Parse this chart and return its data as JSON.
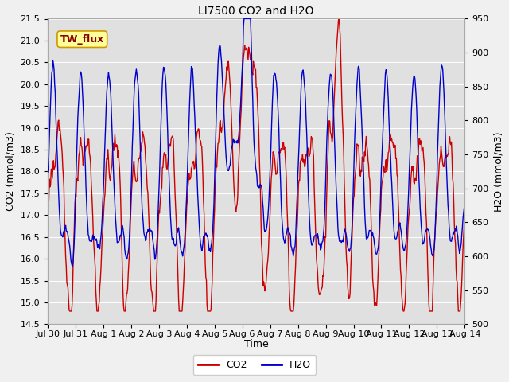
{
  "title": "LI7500 CO2 and H2O",
  "xlabel": "Time",
  "ylabel_left": "CO2 (mmol/m3)",
  "ylabel_right": "H2O (mmol/m3)",
  "co2_color": "#cc0000",
  "h2o_color": "#0000cc",
  "ylim_left": [
    14.5,
    21.5
  ],
  "ylim_right": [
    500,
    950
  ],
  "xtick_labels": [
    "Jul 30",
    "Jul 31",
    "Aug 1",
    "Aug 2",
    "Aug 3",
    "Aug 4",
    "Aug 5",
    "Aug 6",
    "Aug 7",
    "Aug 8",
    "Aug 9",
    "Aug 10",
    "Aug 11",
    "Aug 12",
    "Aug 13",
    "Aug 14"
  ],
  "annotation_text": "TW_flux",
  "fig_bg_color": "#f0f0f0",
  "plot_bg_color": "#e0e0e0",
  "title_fontsize": 10,
  "axis_fontsize": 9,
  "tick_fontsize": 8,
  "legend_fontsize": 9,
  "line_width": 1.0
}
